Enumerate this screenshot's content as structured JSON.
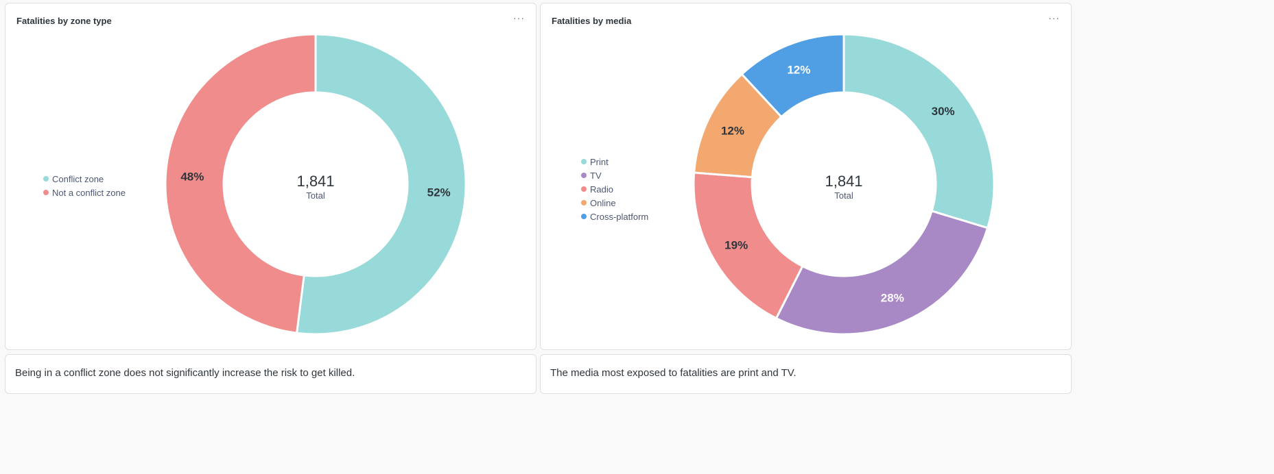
{
  "panels": [
    {
      "title": "Fatalities by zone type",
      "more_label": "···",
      "total_label": "Total",
      "total_value": "1,841",
      "chart_data": {
        "type": "pie",
        "title": "Fatalities by zone type",
        "total": 1841,
        "slices": [
          {
            "name": "Conflict zone",
            "percent": 52,
            "label": "52%",
            "color": "#98d9d9"
          },
          {
            "name": "Not a conflict zone",
            "percent": 48,
            "label": "48%",
            "color": "#f08c8c"
          }
        ]
      }
    },
    {
      "title": "Fatalities by media",
      "more_label": "···",
      "total_label": "Total",
      "total_value": "1,841",
      "chart_data": {
        "type": "pie",
        "title": "Fatalities by media",
        "total": 1841,
        "slices": [
          {
            "name": "Print",
            "percent": 30,
            "label": "30%",
            "color": "#98d9d9"
          },
          {
            "name": "TV",
            "percent": 28,
            "label": "28%",
            "color": "#a989c5"
          },
          {
            "name": "Radio",
            "percent": 19,
            "label": "19%",
            "color": "#f08c8c"
          },
          {
            "name": "Online",
            "percent": 12,
            "label": "12%",
            "color": "#f2a86f"
          },
          {
            "name": "Cross-platform",
            "percent": 12,
            "label": "12%",
            "color": "#509ee3"
          }
        ]
      }
    }
  ],
  "notes": [
    "Being in a conflict zone does not significantly increase the risk to get killed.",
    "The media most exposed to fatalities are print and TV."
  ]
}
